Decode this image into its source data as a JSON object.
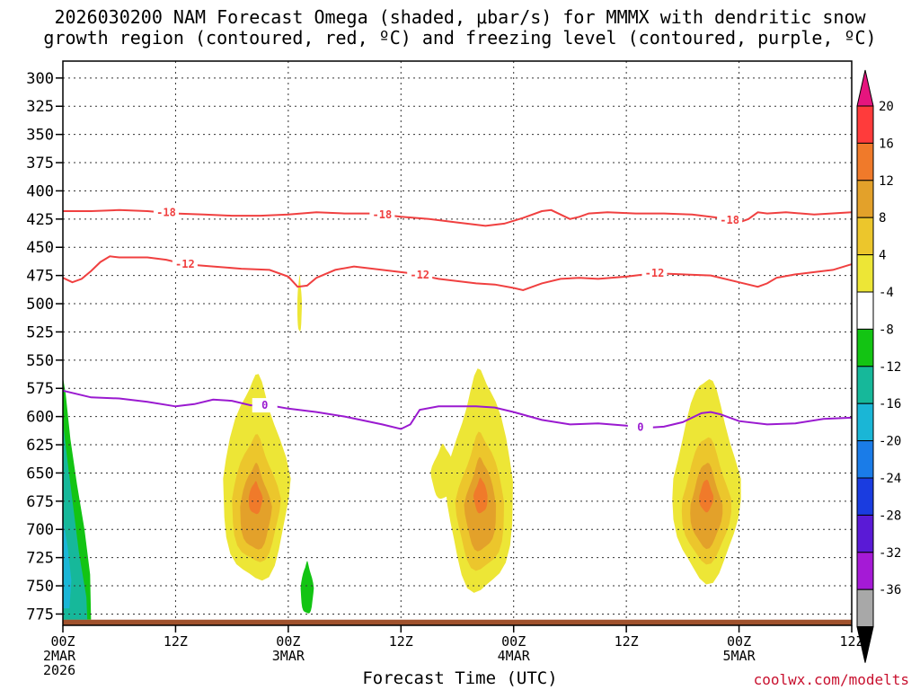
{
  "chart_data": {
    "type": "time-height contour plot",
    "title_line1": "2026030200 NAM Forecast Omega (shaded, μbar/s) for MMMX with dendritic snow",
    "title_line2": "growth region (contoured, red, ºC) and freezing level (contoured, purple, ºC)",
    "xlabel": "Forecast Time (UTC)",
    "credit": "coolwx.com/modelts",
    "x_hours_range": [
      0,
      84
    ],
    "y_pressure_range": [
      285,
      785
    ],
    "y_ticks": [
      300,
      325,
      350,
      375,
      400,
      425,
      450,
      475,
      500,
      525,
      550,
      575,
      600,
      625,
      650,
      675,
      700,
      725,
      750,
      775
    ],
    "x_ticks": [
      {
        "hour": 0,
        "lines": [
          "00Z",
          "2MAR",
          "2026"
        ]
      },
      {
        "hour": 12,
        "lines": [
          "12Z"
        ]
      },
      {
        "hour": 24,
        "lines": [
          "00Z",
          "3MAR"
        ]
      },
      {
        "hour": 36,
        "lines": [
          "12Z"
        ]
      },
      {
        "hour": 48,
        "lines": [
          "00Z",
          "4MAR"
        ]
      },
      {
        "hour": 60,
        "lines": [
          "12Z"
        ]
      },
      {
        "hour": 72,
        "lines": [
          "00Z",
          "5MAR"
        ]
      },
      {
        "hour": 84,
        "lines": [
          "12Z"
        ]
      }
    ],
    "colorbar": {
      "labels": [
        "20",
        "16",
        "12",
        "8",
        "4",
        "-4",
        "-8",
        "-12",
        "-16",
        "-20",
        "-24",
        "-28",
        "-32",
        "-36"
      ],
      "colors": [
        "#ff3b3b",
        "#f07a2a",
        "#e3a12a",
        "#ecc62c",
        "#ede636",
        "#ffffff",
        "#13c413",
        "#16b89a",
        "#1ab6d6",
        "#1a7ce8",
        "#1a3ce0",
        "#5a1ad6",
        "#a51ad6",
        "#a8a8a8"
      ],
      "top_arrow_color": "#e5157e",
      "bottom_arrow_color": "#000000"
    },
    "contours": [
      {
        "name": "-18",
        "color": "#f04040",
        "label_hours": [
          11,
          34,
          71
        ],
        "points": [
          [
            0,
            418
          ],
          [
            3,
            418
          ],
          [
            6,
            417
          ],
          [
            9,
            418
          ],
          [
            12,
            420
          ],
          [
            15,
            421
          ],
          [
            18,
            422
          ],
          [
            21,
            422
          ],
          [
            24,
            421
          ],
          [
            27,
            419
          ],
          [
            30,
            420
          ],
          [
            33,
            420
          ],
          [
            36,
            423
          ],
          [
            39,
            425
          ],
          [
            42,
            428
          ],
          [
            45,
            431
          ],
          [
            47,
            429
          ],
          [
            49,
            424
          ],
          [
            51,
            418
          ],
          [
            52,
            417
          ],
          [
            53,
            421
          ],
          [
            54,
            425
          ],
          [
            55,
            423
          ],
          [
            56,
            420
          ],
          [
            58,
            419
          ],
          [
            61,
            420
          ],
          [
            64,
            420
          ],
          [
            67,
            421
          ],
          [
            70,
            424
          ],
          [
            72,
            428
          ],
          [
            73,
            425
          ],
          [
            74,
            419
          ],
          [
            75,
            420
          ],
          [
            77,
            419
          ],
          [
            80,
            421
          ],
          [
            84,
            419
          ]
        ]
      },
      {
        "name": "-12",
        "color": "#f04040",
        "label_hours": [
          13,
          38,
          63
        ],
        "points": [
          [
            0,
            477
          ],
          [
            1,
            481
          ],
          [
            2,
            478
          ],
          [
            3,
            471
          ],
          [
            4,
            463
          ],
          [
            5,
            458
          ],
          [
            6,
            459
          ],
          [
            9,
            459
          ],
          [
            11,
            461
          ],
          [
            13,
            465
          ],
          [
            16,
            467
          ],
          [
            19,
            469
          ],
          [
            22,
            470
          ],
          [
            24,
            476
          ],
          [
            25,
            485
          ],
          [
            26,
            484
          ],
          [
            27,
            477
          ],
          [
            29,
            470
          ],
          [
            31,
            467
          ],
          [
            34,
            470
          ],
          [
            37,
            473
          ],
          [
            40,
            478
          ],
          [
            42,
            480
          ],
          [
            44,
            482
          ],
          [
            46,
            483
          ],
          [
            48,
            486
          ],
          [
            49,
            488
          ],
          [
            50,
            485
          ],
          [
            51,
            482
          ],
          [
            53,
            478
          ],
          [
            55,
            477
          ],
          [
            57,
            478
          ],
          [
            60,
            476
          ],
          [
            63,
            473
          ],
          [
            66,
            474
          ],
          [
            69,
            475
          ],
          [
            72,
            481
          ],
          [
            74,
            485
          ],
          [
            75,
            482
          ],
          [
            76,
            477
          ],
          [
            78,
            474
          ],
          [
            80,
            472
          ],
          [
            82,
            470
          ],
          [
            84,
            465
          ]
        ]
      },
      {
        "name": "0",
        "color": "#9a1ad0",
        "label_hours": [
          21.5,
          61.5
        ],
        "points": [
          [
            0,
            577
          ],
          [
            3,
            583
          ],
          [
            6,
            584
          ],
          [
            9,
            587
          ],
          [
            12,
            591
          ],
          [
            14,
            589
          ],
          [
            16,
            585
          ],
          [
            18,
            586
          ],
          [
            20,
            590
          ],
          [
            22,
            590
          ],
          [
            24,
            593
          ],
          [
            27,
            596
          ],
          [
            30,
            600
          ],
          [
            34,
            607
          ],
          [
            36,
            611
          ],
          [
            37,
            607
          ],
          [
            38,
            594
          ],
          [
            40,
            591
          ],
          [
            44,
            591
          ],
          [
            46,
            592
          ],
          [
            48,
            596
          ],
          [
            51,
            603
          ],
          [
            54,
            607
          ],
          [
            57,
            606
          ],
          [
            60,
            608
          ],
          [
            62,
            610
          ],
          [
            64,
            609
          ],
          [
            66,
            605
          ],
          [
            68,
            597
          ],
          [
            69,
            596
          ],
          [
            70,
            598
          ],
          [
            72,
            604
          ],
          [
            75,
            607
          ],
          [
            78,
            606
          ],
          [
            81,
            602
          ],
          [
            84,
            601
          ]
        ]
      }
    ],
    "updraft_cells": [
      {
        "center_hour": 20.5,
        "center_hpa": 672,
        "top_hpa": 565,
        "base_hpa": 745,
        "max_omega_range": "12 to 16"
      },
      {
        "center_hour": 44.5,
        "center_hpa": 670,
        "top_hpa": 560,
        "base_hpa": 755,
        "max_omega_range": "12 to 16"
      },
      {
        "center_hour": 68.5,
        "center_hpa": 670,
        "top_hpa": 565,
        "base_hpa": 745,
        "max_omega_range": "12 to 16"
      }
    ],
    "downdraft_region": {
      "hour_range": [
        0,
        3
      ],
      "pressure_range": [
        565,
        780
      ],
      "min_omega_range": "-12 to -16"
    }
  }
}
